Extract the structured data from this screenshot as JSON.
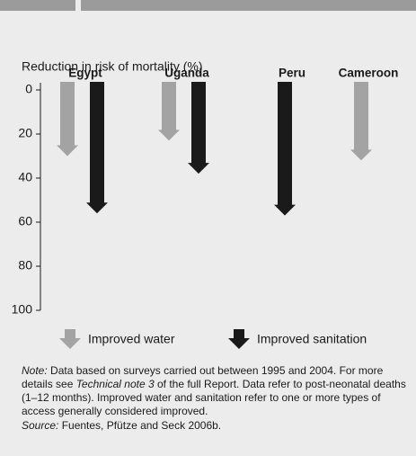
{
  "chart_data": {
    "type": "arrow",
    "title": "Reduction in risk of mortality (%)",
    "categories": [
      "Egypt",
      "Uganda",
      "Peru",
      "Cameroon"
    ],
    "series": [
      {
        "name": "Improved water",
        "color": "#a3a3a3",
        "values": [
          30,
          23,
          null,
          32
        ]
      },
      {
        "name": "Improved sanitation",
        "color": "#1a1a1a",
        "values": [
          56,
          38,
          57,
          null
        ]
      }
    ],
    "ylim": [
      0,
      100
    ],
    "yticks": [
      0,
      20,
      40,
      60,
      80,
      100
    ],
    "inverted": true
  },
  "note": {
    "label": "Note:",
    "text1": " Data based on surveys carried out between 1995 and 2004. For more details see ",
    "italic": "Technical note 3",
    "text2": " of the full Report. Data refer to post-neonatal deaths (1–12 months). Improved water and sanitation refer to one or more types of access generally considered improved."
  },
  "source": {
    "label": "Source:",
    "text": " Fuentes, Pfütze and Seck 2006b."
  }
}
